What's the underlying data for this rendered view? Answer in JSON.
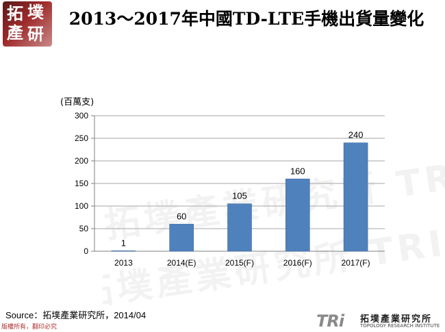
{
  "logo": {
    "line1": [
      "拓",
      "墣"
    ],
    "line2": [
      "產",
      "研"
    ]
  },
  "title": "2013～2017年中國TD-LTE手機出貨量變化",
  "chart_data": {
    "type": "bar",
    "title": "2013～2017年中國TD-LTE手機出貨量變化",
    "unit_label": "(百萬支)",
    "categories": [
      "2013",
      "2014(E)",
      "2015(F)",
      "2016(F)",
      "2017(F)"
    ],
    "values": [
      1,
      60,
      105,
      160,
      240
    ],
    "data_labels": [
      "1",
      "60",
      "105",
      "160",
      "240"
    ],
    "ylim": [
      0,
      300
    ],
    "yticks": [
      0,
      50,
      100,
      150,
      200,
      250,
      300
    ],
    "grid": true,
    "bar_color": "#4f81bd"
  },
  "watermark": "拓墣產業研究所 TRI",
  "source": "Source：拓墣產業研究所，2014/04",
  "copyright": "版權所有，翻印必究",
  "footer_logo": {
    "mark": "TRi",
    "name": "拓墣產業研究所",
    "sub": "TOPOLOGY RESEARCH INSTITUTE"
  }
}
